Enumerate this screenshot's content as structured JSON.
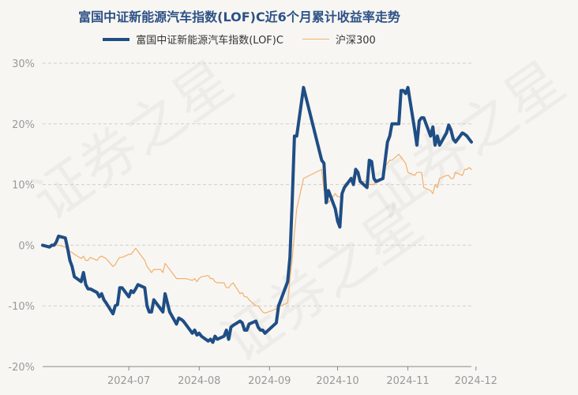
{
  "chart_data": {
    "type": "line",
    "title": "富国中证新能源汽车指数(LOF)C近6个月累计收益率走势",
    "legend_position": "top",
    "grid": true,
    "ylim": [
      -20,
      30
    ],
    "y_ticks": [
      "30%",
      "20%",
      "10%",
      "0%",
      "-10%",
      "-20%"
    ],
    "x_ticks": [
      "2024-07",
      "2024-08",
      "2024-09",
      "2024-10",
      "2024-11",
      "2024-12"
    ],
    "x_range": [
      "2024-06-07",
      "2024-12-13"
    ],
    "series": [
      {
        "name": "富国中证新能源汽车指数(LOF)C",
        "color": "#1f4e85",
        "points": [
          [
            "2024-06-07",
            0
          ],
          [
            "2024-06-10",
            -0.3
          ],
          [
            "2024-06-11",
            0
          ],
          [
            "2024-06-12",
            0
          ],
          [
            "2024-06-13",
            0.5
          ],
          [
            "2024-06-14",
            1.5
          ],
          [
            "2024-06-17",
            1.2
          ],
          [
            "2024-06-18",
            -0.5
          ],
          [
            "2024-06-19",
            -2.5
          ],
          [
            "2024-06-20",
            -3.5
          ],
          [
            "2024-06-21",
            -5.2
          ],
          [
            "2024-06-24",
            -6
          ],
          [
            "2024-06-25",
            -4.5
          ],
          [
            "2024-06-26",
            -6.5
          ],
          [
            "2024-06-27",
            -7.2
          ],
          [
            "2024-06-28",
            -7.2
          ],
          [
            "2024-07-01",
            -7.8
          ],
          [
            "2024-07-02",
            -8.5
          ],
          [
            "2024-07-03",
            -8
          ],
          [
            "2024-07-04",
            -9
          ],
          [
            "2024-07-05",
            -9.5
          ],
          [
            "2024-07-08",
            -11.3
          ],
          [
            "2024-07-09",
            -10
          ],
          [
            "2024-07-10",
            -9.8
          ],
          [
            "2024-07-11",
            -7
          ],
          [
            "2024-07-12",
            -7
          ],
          [
            "2024-07-15",
            -8.5
          ],
          [
            "2024-07-16",
            -7.5
          ],
          [
            "2024-07-17",
            -7.8
          ],
          [
            "2024-07-18",
            -7.2
          ],
          [
            "2024-07-19",
            -6.5
          ],
          [
            "2024-07-22",
            -7
          ],
          [
            "2024-07-23",
            -10
          ],
          [
            "2024-07-24",
            -11
          ],
          [
            "2024-07-25",
            -11
          ],
          [
            "2024-07-26",
            -9
          ],
          [
            "2024-07-29",
            -10.5
          ],
          [
            "2024-07-30",
            -11
          ],
          [
            "2024-07-31",
            -8
          ],
          [
            "2024-08-01",
            -9.5
          ],
          [
            "2024-08-02",
            -11
          ],
          [
            "2024-08-05",
            -13
          ],
          [
            "2024-08-06",
            -12
          ],
          [
            "2024-08-07",
            -12.2
          ],
          [
            "2024-08-08",
            -12.5
          ],
          [
            "2024-08-09",
            -13
          ],
          [
            "2024-08-12",
            -14.5
          ],
          [
            "2024-08-13",
            -14
          ],
          [
            "2024-08-14",
            -14.8
          ],
          [
            "2024-08-15",
            -14.5
          ],
          [
            "2024-08-16",
            -15
          ],
          [
            "2024-08-19",
            -15.8
          ],
          [
            "2024-08-20",
            -15.5
          ],
          [
            "2024-08-21",
            -16
          ],
          [
            "2024-08-22",
            -15
          ],
          [
            "2024-08-23",
            -15.5
          ],
          [
            "2024-08-26",
            -15
          ],
          [
            "2024-08-27",
            -14
          ],
          [
            "2024-08-28",
            -15.5
          ],
          [
            "2024-08-29",
            -13.5
          ],
          [
            "2024-08-30",
            -13.2
          ],
          [
            "2024-09-02",
            -12.5
          ],
          [
            "2024-09-03",
            -12.8
          ],
          [
            "2024-09-04",
            -14
          ],
          [
            "2024-09-05",
            -14
          ],
          [
            "2024-09-06",
            -13
          ],
          [
            "2024-09-09",
            -12.5
          ],
          [
            "2024-09-10",
            -13.5
          ],
          [
            "2024-09-11",
            -14
          ],
          [
            "2024-09-12",
            -14
          ],
          [
            "2024-09-13",
            -14.5
          ],
          [
            "2024-09-18",
            -12.8
          ],
          [
            "2024-09-19",
            -10
          ],
          [
            "2024-09-20",
            -9
          ],
          [
            "2024-09-23",
            -6
          ],
          [
            "2024-09-24",
            -2
          ],
          [
            "2024-09-25",
            7
          ],
          [
            "2024-09-26",
            18
          ],
          [
            "2024-09-27",
            18
          ],
          [
            "2024-09-30",
            26
          ],
          [
            "2024-10-08",
            14
          ],
          [
            "2024-10-09",
            13.5
          ],
          [
            "2024-10-10",
            7
          ],
          [
            "2024-10-11",
            9
          ],
          [
            "2024-10-14",
            6
          ],
          [
            "2024-10-15",
            4
          ],
          [
            "2024-10-16",
            3
          ],
          [
            "2024-10-17",
            8.5
          ],
          [
            "2024-10-18",
            9.5
          ],
          [
            "2024-10-21",
            11
          ],
          [
            "2024-10-22",
            10
          ],
          [
            "2024-10-23",
            12.5
          ],
          [
            "2024-10-24",
            12
          ],
          [
            "2024-10-25",
            10.5
          ],
          [
            "2024-10-28",
            9.5
          ],
          [
            "2024-10-29",
            14
          ],
          [
            "2024-10-30",
            13.8
          ],
          [
            "2024-10-31",
            11
          ],
          [
            "2024-11-01",
            10.5
          ],
          [
            "2024-11-04",
            11
          ],
          [
            "2024-11-05",
            14
          ],
          [
            "2024-11-06",
            17
          ],
          [
            "2024-11-07",
            18
          ],
          [
            "2024-11-08",
            20
          ],
          [
            "2024-11-11",
            20
          ],
          [
            "2024-11-12",
            25.5
          ],
          [
            "2024-11-13",
            25.5
          ],
          [
            "2024-11-14",
            25
          ],
          [
            "2024-11-15",
            26
          ],
          [
            "2024-11-18",
            19
          ],
          [
            "2024-11-19",
            16.5
          ],
          [
            "2024-11-20",
            20.5
          ],
          [
            "2024-11-21",
            21
          ],
          [
            "2024-11-22",
            21
          ],
          [
            "2024-11-25",
            18
          ],
          [
            "2024-11-26",
            19.5
          ],
          [
            "2024-11-27",
            16.5
          ],
          [
            "2024-11-28",
            18
          ],
          [
            "2024-11-29",
            16.5
          ],
          [
            "2024-12-02",
            18.5
          ],
          [
            "2024-12-03",
            19.8
          ],
          [
            "2024-12-04",
            19
          ],
          [
            "2024-12-05",
            17.5
          ],
          [
            "2024-12-06",
            17
          ],
          [
            "2024-12-09",
            18.5
          ],
          [
            "2024-12-10",
            18.3
          ],
          [
            "2024-12-11",
            18
          ],
          [
            "2024-12-12",
            17.5
          ],
          [
            "2024-12-13",
            17
          ]
        ]
      },
      {
        "name": "沪深300",
        "color": "#f0b070",
        "points": [
          [
            "2024-06-07",
            0
          ],
          [
            "2024-06-10",
            -0.5
          ],
          [
            "2024-06-11",
            -0.3
          ],
          [
            "2024-06-12",
            0
          ],
          [
            "2024-06-13",
            0
          ],
          [
            "2024-06-14",
            0
          ],
          [
            "2024-06-17",
            -0.3
          ],
          [
            "2024-06-18",
            -0.8
          ],
          [
            "2024-06-19",
            -1
          ],
          [
            "2024-06-20",
            -1.2
          ],
          [
            "2024-06-21",
            -1.5
          ],
          [
            "2024-06-24",
            -2.2
          ],
          [
            "2024-06-25",
            -1.8
          ],
          [
            "2024-06-26",
            -2.5
          ],
          [
            "2024-06-27",
            -2.5
          ],
          [
            "2024-06-28",
            -2
          ],
          [
            "2024-07-01",
            -2.5
          ],
          [
            "2024-07-02",
            -2
          ],
          [
            "2024-07-03",
            -1.8
          ],
          [
            "2024-07-04",
            -2
          ],
          [
            "2024-07-05",
            -2.2
          ],
          [
            "2024-07-08",
            -3.5
          ],
          [
            "2024-07-09",
            -3.2
          ],
          [
            "2024-07-10",
            -2.5
          ],
          [
            "2024-07-11",
            -2
          ],
          [
            "2024-07-12",
            -2
          ],
          [
            "2024-07-15",
            -1.5
          ],
          [
            "2024-07-16",
            -1.5
          ],
          [
            "2024-07-17",
            -1
          ],
          [
            "2024-07-18",
            -0.5
          ],
          [
            "2024-07-19",
            -1
          ],
          [
            "2024-07-22",
            -2.5
          ],
          [
            "2024-07-23",
            -3.5
          ],
          [
            "2024-07-24",
            -4
          ],
          [
            "2024-07-25",
            -4.5
          ],
          [
            "2024-07-26",
            -4
          ],
          [
            "2024-07-29",
            -4
          ],
          [
            "2024-07-30",
            -4.5
          ],
          [
            "2024-07-31",
            -3
          ],
          [
            "2024-08-01",
            -3.5
          ],
          [
            "2024-08-02",
            -4
          ],
          [
            "2024-08-05",
            -5.5
          ],
          [
            "2024-08-06",
            -5.5
          ],
          [
            "2024-08-07",
            -5.5
          ],
          [
            "2024-08-08",
            -5.5
          ],
          [
            "2024-08-09",
            -5.5
          ],
          [
            "2024-08-12",
            -5.8
          ],
          [
            "2024-08-13",
            -5.5
          ],
          [
            "2024-08-14",
            -6
          ],
          [
            "2024-08-15",
            -5.5
          ],
          [
            "2024-08-16",
            -5.2
          ],
          [
            "2024-08-19",
            -5
          ],
          [
            "2024-08-20",
            -5.5
          ],
          [
            "2024-08-21",
            -5.5
          ],
          [
            "2024-08-22",
            -6
          ],
          [
            "2024-08-23",
            -6.2
          ],
          [
            "2024-08-26",
            -6.2
          ],
          [
            "2024-08-27",
            -7
          ],
          [
            "2024-08-28",
            -7
          ],
          [
            "2024-08-29",
            -6.5
          ],
          [
            "2024-08-30",
            -6.2
          ],
          [
            "2024-09-02",
            -8
          ],
          [
            "2024-09-03",
            -7.8
          ],
          [
            "2024-09-04",
            -8.5
          ],
          [
            "2024-09-05",
            -8.5
          ],
          [
            "2024-09-06",
            -9
          ],
          [
            "2024-09-09",
            -10
          ],
          [
            "2024-09-10",
            -10
          ],
          [
            "2024-09-11",
            -10.5
          ],
          [
            "2024-09-12",
            -11
          ],
          [
            "2024-09-13",
            -11.2
          ],
          [
            "2024-09-18",
            -10.5
          ],
          [
            "2024-09-19",
            -10
          ],
          [
            "2024-09-20",
            -10
          ],
          [
            "2024-09-23",
            -9.5
          ],
          [
            "2024-09-24",
            -5.5
          ],
          [
            "2024-09-25",
            -2.5
          ],
          [
            "2024-09-26",
            2
          ],
          [
            "2024-09-27",
            6
          ],
          [
            "2024-09-30",
            11
          ],
          [
            "2024-10-08",
            12.5
          ],
          [
            "2024-10-09",
            9
          ],
          [
            "2024-10-10",
            10
          ],
          [
            "2024-10-11",
            7
          ],
          [
            "2024-10-14",
            8.5
          ],
          [
            "2024-10-15",
            8
          ],
          [
            "2024-10-16",
            8
          ],
          [
            "2024-10-17",
            8.5
          ],
          [
            "2024-10-18",
            10
          ],
          [
            "2024-10-21",
            11
          ],
          [
            "2024-10-22",
            11.5
          ],
          [
            "2024-10-23",
            11.8
          ],
          [
            "2024-10-24",
            11.5
          ],
          [
            "2024-10-25",
            10.5
          ],
          [
            "2024-10-28",
            10.5
          ],
          [
            "2024-10-29",
            10
          ],
          [
            "2024-10-30",
            10
          ],
          [
            "2024-10-31",
            10
          ],
          [
            "2024-11-01",
            10.5
          ],
          [
            "2024-11-04",
            11
          ],
          [
            "2024-11-05",
            13
          ],
          [
            "2024-11-06",
            13.5
          ],
          [
            "2024-11-07",
            14
          ],
          [
            "2024-11-08",
            14
          ],
          [
            "2024-11-11",
            15
          ],
          [
            "2024-11-12",
            14.5
          ],
          [
            "2024-11-13",
            14
          ],
          [
            "2024-11-14",
            13.5
          ],
          [
            "2024-11-15",
            12
          ],
          [
            "2024-11-18",
            11.5
          ],
          [
            "2024-11-19",
            12
          ],
          [
            "2024-11-20",
            12
          ],
          [
            "2024-11-21",
            12
          ],
          [
            "2024-11-22",
            9.5
          ],
          [
            "2024-11-25",
            9
          ],
          [
            "2024-11-26",
            8.5
          ],
          [
            "2024-11-27",
            10
          ],
          [
            "2024-11-28",
            9.5
          ],
          [
            "2024-11-29",
            11
          ],
          [
            "2024-12-02",
            11.5
          ],
          [
            "2024-12-03",
            11.5
          ],
          [
            "2024-12-04",
            11
          ],
          [
            "2024-12-05",
            11
          ],
          [
            "2024-12-06",
            12
          ],
          [
            "2024-12-09",
            11.5
          ],
          [
            "2024-12-10",
            12.5
          ],
          [
            "2024-12-11",
            12.5
          ],
          [
            "2024-12-12",
            12.8
          ],
          [
            "2024-12-13",
            12.5
          ]
        ]
      }
    ]
  },
  "watermark_text": "证券之星"
}
